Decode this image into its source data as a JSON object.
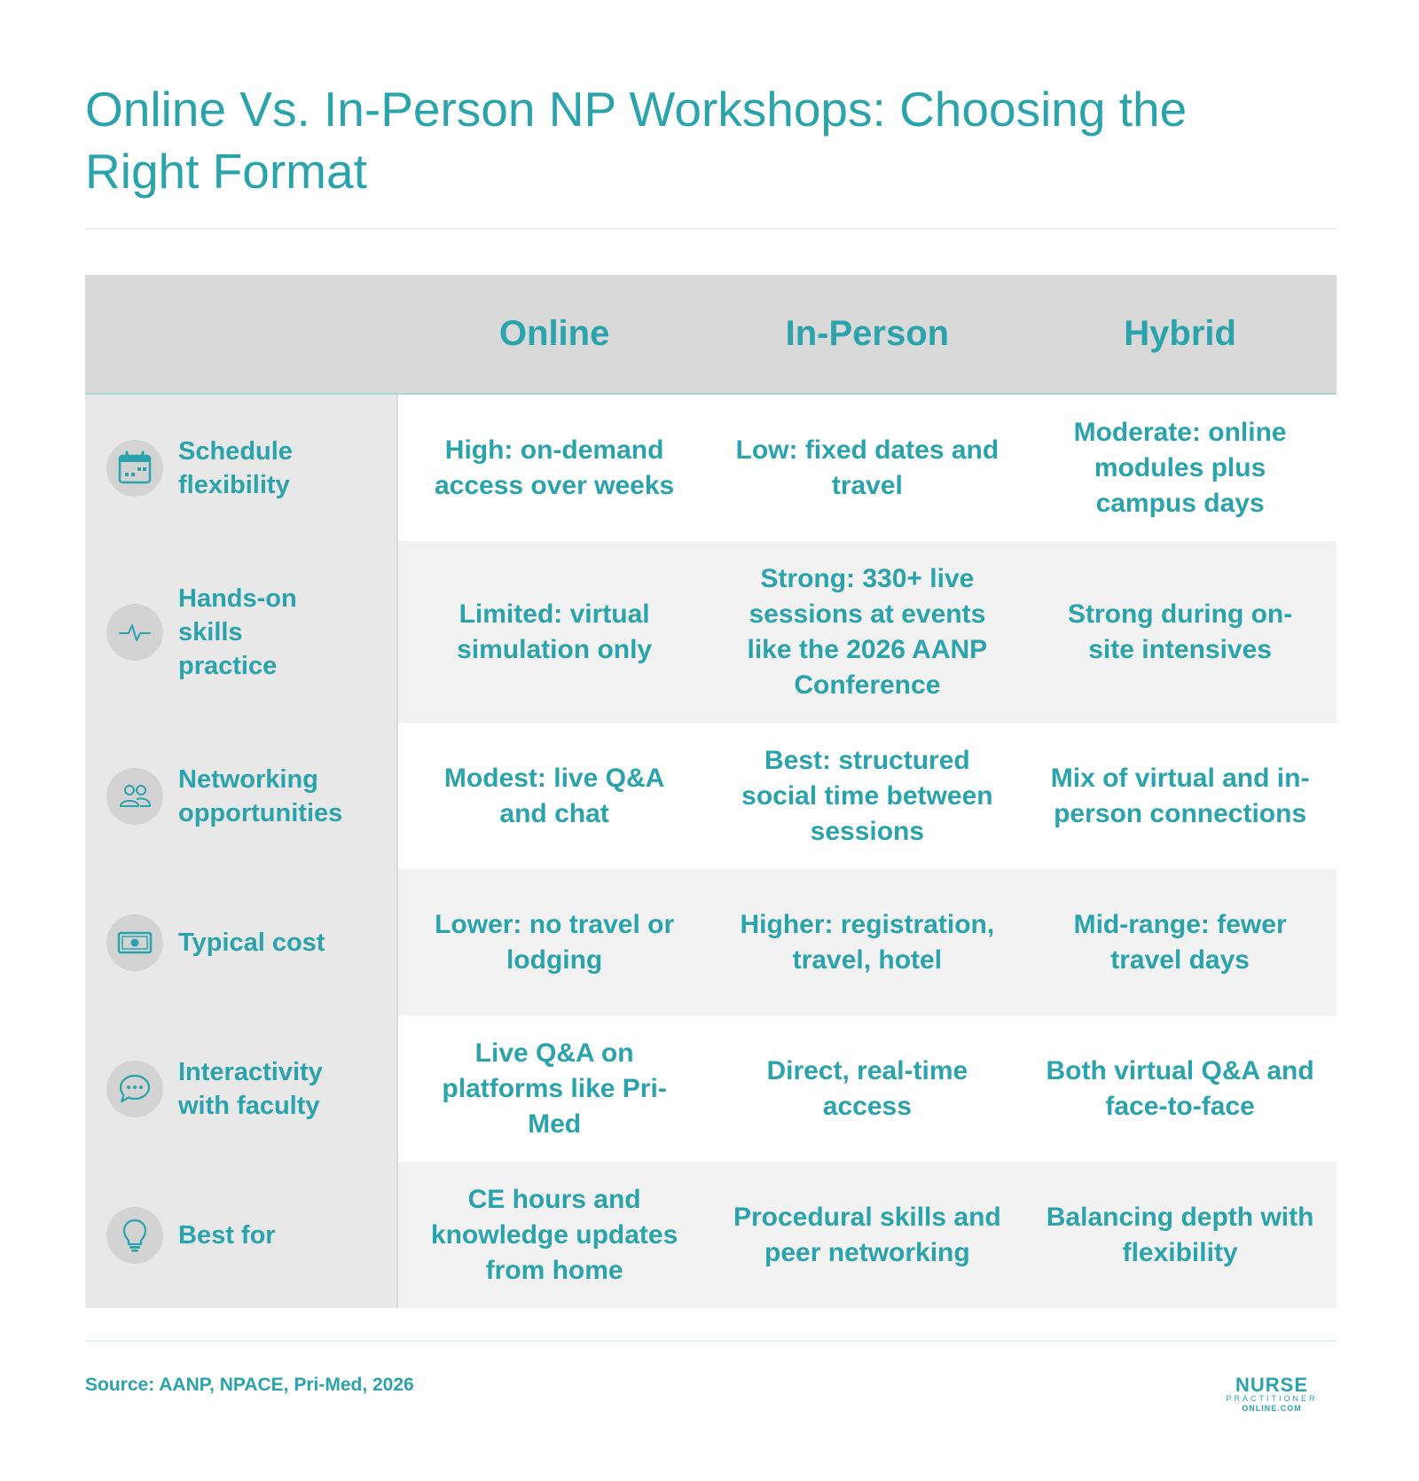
{
  "title": "Online Vs. In-Person NP Workshops: Choosing the Right Format",
  "columns": [
    "Online",
    "In-Person",
    "Hybrid"
  ],
  "rows": [
    {
      "label": "Schedule flexibility",
      "icon": "calendar-icon",
      "cells": [
        "High: on-demand access over weeks",
        "Low: fixed dates and travel",
        "Moderate: online modules plus campus days"
      ]
    },
    {
      "label": "Hands-on skills practice",
      "icon": "pulse-icon",
      "cells": [
        "Limited: virtual simulation only",
        "Strong: 330+ live sessions at events like the 2026 AANP Conference",
        "Strong during on-site intensives"
      ]
    },
    {
      "label": "Networking opportunities",
      "icon": "people-icon",
      "cells": [
        "Modest: live Q&A and chat",
        "Best: structured social time between sessions",
        "Mix of virtual and in-person connections"
      ]
    },
    {
      "label": "Typical cost",
      "icon": "money-icon",
      "cells": [
        "Lower: no travel or lodging",
        "Higher: registration, travel, hotel",
        "Mid-range: fewer travel days"
      ]
    },
    {
      "label": "Interactivity with faculty",
      "icon": "chat-icon",
      "cells": [
        "Live Q&A on platforms like Pri-Med",
        "Direct, real-time access",
        "Both virtual Q&A and face-to-face"
      ]
    },
    {
      "label": "Best for",
      "icon": "lightbulb-icon",
      "cells": [
        "CE hours and knowledge updates from home",
        "Procedural skills and peer networking",
        "Balancing depth with flexibility"
      ]
    }
  ],
  "source": "Source: AANP, NPACE, Pri-Med, 2026",
  "logo": {
    "line1": "NURSE",
    "line2": "PRACTITIONER",
    "line3": "ONLINE.COM"
  },
  "colors": {
    "accent": "#2aa3ad",
    "header_bg": "#d9d9d9",
    "label_bg": "#e8e8e8",
    "icon_bg": "#d3d3d3",
    "row_alt_bg": "#f2f2f2"
  }
}
